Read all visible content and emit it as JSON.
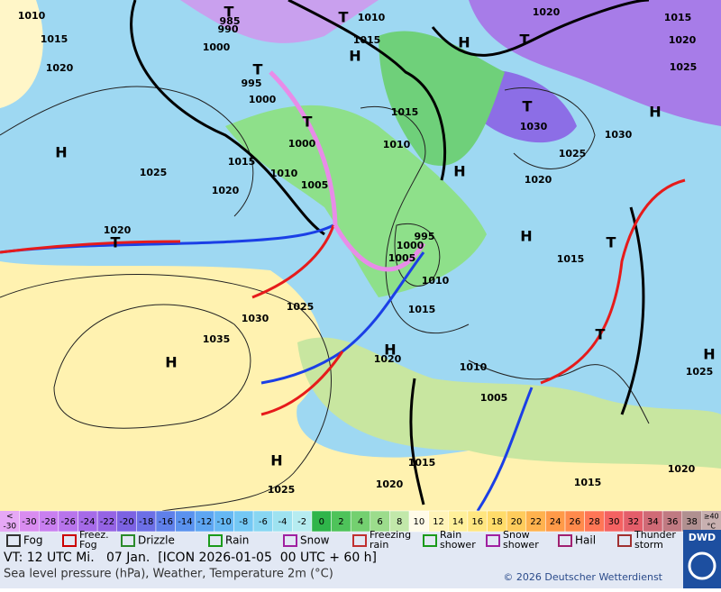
{
  "map": {
    "labels": [
      "1010",
      "1015",
      "1020",
      "H",
      "1025",
      "1020",
      "1020",
      "T",
      "1030",
      "1025",
      "1035",
      "H",
      "H",
      "1025",
      "1020",
      "1015",
      "1005",
      "1010",
      "1020",
      "H",
      "1015",
      "1010",
      "1005",
      "1000",
      "995",
      "1015",
      "1010",
      "1005",
      "1000",
      "T",
      "995",
      "1000",
      "T",
      "1000",
      "990",
      "985",
      "T",
      "T",
      "1010",
      "1015",
      "H",
      "H",
      "T",
      "1020",
      "1015",
      "1020",
      "1025",
      "H",
      "1030",
      "1030",
      "T",
      "1015",
      "1010",
      "1025",
      "1020",
      "H",
      "1015",
      "H",
      "T",
      "T",
      "1025",
      "H",
      "1020",
      "1015"
    ]
  },
  "scale": {
    "low_label": [
      "<",
      "-30"
    ],
    "values": [
      -30,
      -28,
      -26,
      -24,
      -22,
      -20,
      -18,
      -16,
      -14,
      -12,
      -10,
      -8,
      -6,
      -4,
      -2,
      0,
      2,
      4,
      6,
      8,
      10,
      12,
      14,
      16,
      18,
      20,
      22,
      24,
      26,
      28,
      30,
      32,
      34,
      36,
      38
    ],
    "high_label": [
      "≥40",
      "°C"
    ],
    "low_color": "#e6a8f5",
    "colors": [
      "#d98cf0",
      "#c97ff0",
      "#b874ec",
      "#a66ae8",
      "#9563e4",
      "#7c62e2",
      "#6c6fe6",
      "#5f80ea",
      "#5a92ee",
      "#5ea6f2",
      "#66b8f4",
      "#74c8f4",
      "#88d6f2",
      "#9ee2f0",
      "#b6ecf0",
      "#2fb54a",
      "#4ec35a",
      "#74d070",
      "#9cdc8c",
      "#c2e8aa",
      "#fffbe8",
      "#fff4b8",
      "#fff09a",
      "#ffe680",
      "#ffdc6a",
      "#ffcc5c",
      "#ffb24e",
      "#ff9a48",
      "#ff8a4c",
      "#ff7656",
      "#f46262",
      "#e45e6a",
      "#d06a76",
      "#c07a82",
      "#b09090"
    ],
    "high_color": "#c8b0b0"
  },
  "legend": [
    [
      "Fog"
    ],
    [
      "Freez.",
      "Fog"
    ],
    [
      "Drizzle"
    ],
    [
      "Rain"
    ],
    [
      "Snow"
    ],
    [
      "Freezing",
      "rain"
    ],
    [
      "Rain",
      "shower"
    ],
    [
      "Snow",
      "shower"
    ],
    [
      "Hail"
    ],
    [
      "Thunder",
      "storm"
    ]
  ],
  "footer": {
    "valid_time": "VT: 12 UTC Mi.   07 Jan.  [ICON 2026-01-05  00 UTC + 60 h]",
    "description": "Sea level pressure (hPa), Weather, Temperature 2m (°C)",
    "copyright": "© 2026 Deutscher Wetterdienst",
    "logo": "DWD"
  }
}
